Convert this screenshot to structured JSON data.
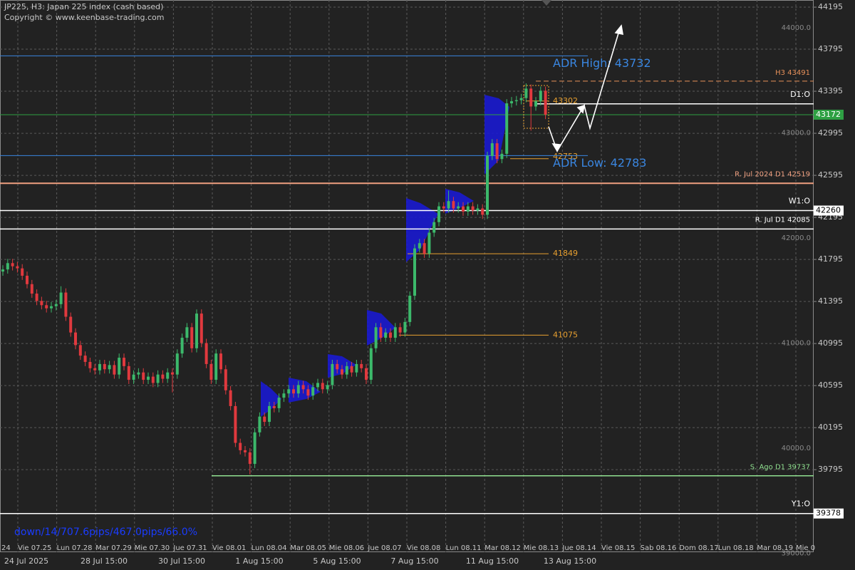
{
  "chart_data": {
    "type": "candlestick",
    "title": "JP225, H3:  Japan 225 index (cash based)",
    "subtitle": "Copyright © www.keenbase-trading.com",
    "annotation": "down/14/707.6pips/467.0pips/66.0%",
    "up_color": "#3cb96b",
    "down_color": "#e0393e",
    "open": [
      41680,
      41700,
      41760,
      41730,
      41710,
      41640,
      41560,
      41470,
      41400,
      41360,
      41330,
      41350,
      41370,
      41480,
      41250,
      41100,
      40980,
      40880,
      40820,
      40760,
      40740,
      40800,
      40750,
      40790,
      40700,
      40860,
      40780,
      40650,
      40700,
      40720,
      40650,
      40680,
      40620,
      40700,
      40660,
      40720,
      40700,
      40900,
      41050,
      41150,
      40950,
      41280,
      41000,
      40800,
      40650,
      40900,
      40750,
      40550,
      40400,
      40050,
      39980,
      39960,
      39850,
      40150,
      40300,
      40250,
      40400,
      40380,
      40480,
      40520,
      40560,
      40520,
      40600,
      40560,
      40500,
      40580,
      40620,
      40560,
      40600,
      40800,
      40750,
      40700,
      40780,
      40720,
      40800,
      40760,
      40650,
      40950,
      41150,
      41050,
      41100,
      41050,
      41150,
      41100,
      41200,
      41450,
      41900,
      41950,
      41850,
      42050,
      42150,
      42300,
      42280,
      42350,
      42280,
      42300,
      42250,
      42300,
      42260,
      42280,
      42220,
      42780,
      42900,
      42750,
      42800,
      43280,
      43300,
      43310,
      43330,
      43420,
      43250,
      43300,
      43400
    ],
    "high": [
      41740,
      41800,
      41800,
      41770,
      41750,
      41680,
      41600,
      41510,
      41440,
      41400,
      41390,
      41410,
      41540,
      41520,
      41290,
      41140,
      41020,
      40920,
      40860,
      40800,
      40840,
      40840,
      40830,
      40830,
      40900,
      40900,
      40820,
      40740,
      40760,
      40760,
      40720,
      40720,
      40740,
      40740,
      40760,
      40760,
      40940,
      41090,
      41190,
      41190,
      41320,
      41320,
      41040,
      40840,
      40940,
      40940,
      40790,
      40590,
      40440,
      40090,
      40020,
      40000,
      40190,
      40340,
      40340,
      40440,
      40440,
      40520,
      40560,
      40600,
      40600,
      40640,
      40640,
      40600,
      40620,
      40660,
      40660,
      40640,
      40840,
      40840,
      40790,
      40820,
      40820,
      40840,
      40840,
      40800,
      40990,
      41190,
      41190,
      41140,
      41140,
      41190,
      41190,
      41240,
      41490,
      41940,
      41990,
      41990,
      42090,
      42190,
      42340,
      42340,
      42450,
      42390,
      42340,
      42340,
      42340,
      42340,
      42320,
      42320,
      42820,
      42940,
      42940,
      42840,
      43320,
      43340,
      43350,
      43370,
      43470,
      43460,
      43340,
      43440,
      43440
    ],
    "low": [
      41640,
      41660,
      41690,
      41670,
      41600,
      41520,
      41430,
      41360,
      41320,
      41290,
      41290,
      41310,
      41330,
      41210,
      41060,
      40940,
      40840,
      40780,
      40720,
      40700,
      40700,
      40710,
      40710,
      40660,
      40660,
      40740,
      40610,
      40610,
      40660,
      40610,
      40610,
      40580,
      40580,
      40620,
      40620,
      40530,
      40660,
      40860,
      41010,
      40910,
      40910,
      40960,
      40760,
      40610,
      40610,
      40710,
      40510,
      40360,
      40010,
      39940,
      39920,
      39750,
      39810,
      40110,
      40210,
      40210,
      40340,
      40340,
      40440,
      40480,
      40480,
      40480,
      40520,
      40460,
      40460,
      40540,
      40520,
      40520,
      40560,
      40710,
      40660,
      40660,
      40680,
      40680,
      40720,
      40610,
      40610,
      40910,
      41010,
      41010,
      41010,
      41010,
      41060,
      41060,
      41160,
      41410,
      41860,
      41810,
      41810,
      42010,
      42110,
      42240,
      42240,
      42240,
      42240,
      42210,
      42210,
      42220,
      42220,
      42180,
      42180,
      42740,
      42710,
      42710,
      42760,
      43240,
      43260,
      43270,
      43290,
      43020,
      43210,
      43260,
      43130
    ],
    "close": [
      41700,
      41760,
      41730,
      41710,
      41640,
      41560,
      41470,
      41400,
      41360,
      41330,
      41350,
      41370,
      41480,
      41250,
      41100,
      40980,
      40880,
      40820,
      40760,
      40740,
      40800,
      40750,
      40790,
      40700,
      40860,
      40780,
      40650,
      40700,
      40720,
      40650,
      40680,
      40620,
      40700,
      40660,
      40720,
      40700,
      40900,
      41050,
      41150,
      40950,
      41280,
      41000,
      40800,
      40650,
      40900,
      40750,
      40550,
      40400,
      40050,
      39980,
      39960,
      39850,
      40150,
      40300,
      40250,
      40400,
      40380,
      40480,
      40520,
      40560,
      40520,
      40600,
      40560,
      40500,
      40580,
      40620,
      40560,
      40600,
      40800,
      40750,
      40700,
      40780,
      40720,
      40800,
      40760,
      40650,
      40950,
      41150,
      41050,
      41100,
      41050,
      41150,
      41100,
      41200,
      41450,
      41900,
      41950,
      41850,
      42050,
      42150,
      42300,
      42280,
      42350,
      42280,
      42300,
      42250,
      42300,
      42260,
      42280,
      42220,
      42780,
      42900,
      42750,
      42800,
      43280,
      43300,
      43310,
      43330,
      43420,
      43250,
      43300,
      43400,
      43172
    ],
    "ylim": [
      39010,
      44263
    ],
    "yticks": [
      39795,
      40195,
      40595,
      40995,
      41395,
      41795,
      42195,
      42595,
      42995,
      43395,
      43795,
      44195
    ],
    "round_levels": [
      {
        "value": 44000,
        "label": "44000.0"
      },
      {
        "value": 43000,
        "label": "43000.0"
      },
      {
        "value": 42000,
        "label": "42000.0"
      },
      {
        "value": 41000,
        "label": "41000.0"
      },
      {
        "value": 40000,
        "label": "40000.0"
      },
      {
        "value": 39000,
        "label": "39000.0"
      }
    ],
    "grid": true,
    "date_labels": [
      "24",
      "Vie 07.25",
      "Lun 07.28",
      "Mar 07.29",
      "Mie 07.30",
      "Jue 07.31",
      "Vie 08.01",
      "Lun 08.04",
      "Mar 08.05",
      "Mie 08.06",
      "Jue 08.07",
      "Vie 08.08",
      "Lun 08.11",
      "Mar 08.12",
      "Mie 08.13",
      "Jue 08.14",
      "Vie 08.15",
      "Sab 08.16",
      "Dom 08.17",
      "Lun 08.18",
      "Mar 08.19",
      "Mie 0"
    ],
    "time_labels": [
      "24 Jul 2025",
      "28 Jul 15:00",
      "30 Jul 15:00",
      "1 Aug 15:00",
      "5 Aug 15:00",
      "7 Aug 15:00",
      "11 Aug 15:00",
      "13 Aug 15:00"
    ],
    "levels": [
      {
        "label": "ADR High: 43732",
        "value": 43732,
        "color": "#3a86e0"
      },
      {
        "label": "H3 43491",
        "value": 43491,
        "color": "#e8915a",
        "dashed": true
      },
      {
        "label": "43302",
        "value": 43302,
        "color": "#e8a030"
      },
      {
        "label": "D1:O",
        "value": 43275,
        "color": "#ffffff"
      },
      {
        "label": "42753",
        "value": 42753,
        "color": "#e8a030"
      },
      {
        "label": "ADR Low: 42783",
        "value": 42783,
        "color": "#3a86e0"
      },
      {
        "label": "R. Jul 2024 D1 42519",
        "value": 42519,
        "color": "#f0a080"
      },
      {
        "label": "W1:O",
        "value": 42260,
        "color": "#ffffff"
      },
      {
        "label": "R. Jul D1 42085",
        "value": 42085,
        "color": "#ffffff"
      },
      {
        "label": "41849",
        "value": 41849,
        "color": "#e8a030"
      },
      {
        "label": "41075",
        "value": 41075,
        "color": "#e8a030"
      },
      {
        "label": "S. Ago D1 39737",
        "value": 39737,
        "color": "#90e090"
      },
      {
        "label": "Y1:O",
        "value": 39378,
        "color": "#ffffff"
      }
    ],
    "badges": [
      {
        "value": 43172,
        "color": "#2ea043"
      },
      {
        "value": 42260,
        "color": "#ffffff"
      },
      {
        "value": 39378,
        "color": "#ffffff"
      }
    ]
  }
}
